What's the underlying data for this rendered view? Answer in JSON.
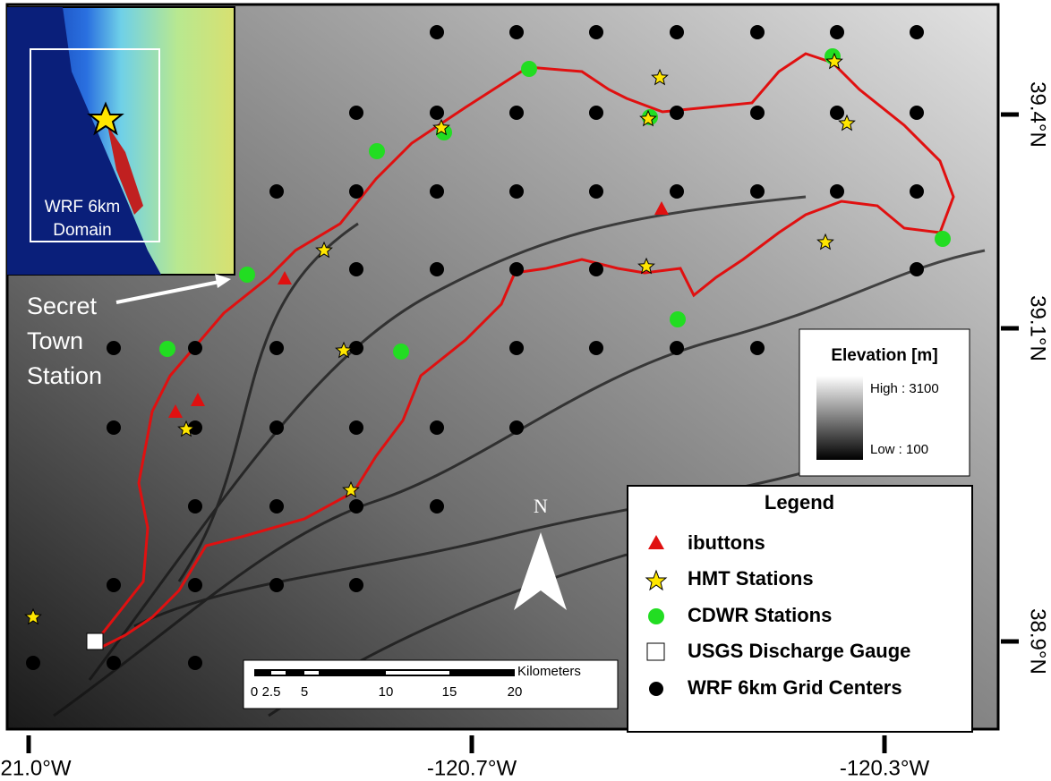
{
  "axes": {
    "lon_labels": [
      "21.0°W",
      "-120.7°W",
      "-120.3°W"
    ],
    "lat_labels": [
      "39.4°N",
      "39.1°N",
      "38.9°N"
    ]
  },
  "inset": {
    "label_lines": [
      "WRF 6km",
      "Domain"
    ]
  },
  "annotation": {
    "lines": [
      "Secret",
      "Town",
      "Station"
    ]
  },
  "elevation_legend": {
    "title": "Elevation [m]",
    "high": "High : 3100",
    "low": "Low : 100"
  },
  "legend": {
    "title": "Legend",
    "items": [
      "ibuttons",
      "HMT Stations",
      "CDWR Stations",
      "USGS Discharge Gauge",
      "WRF 6km Grid Centers"
    ]
  },
  "scale_bar": {
    "unit": "Kilometers",
    "labels": [
      "0",
      "2.5",
      "5",
      "10",
      "15",
      "20"
    ]
  },
  "north_arrow": {
    "label": "N"
  }
}
